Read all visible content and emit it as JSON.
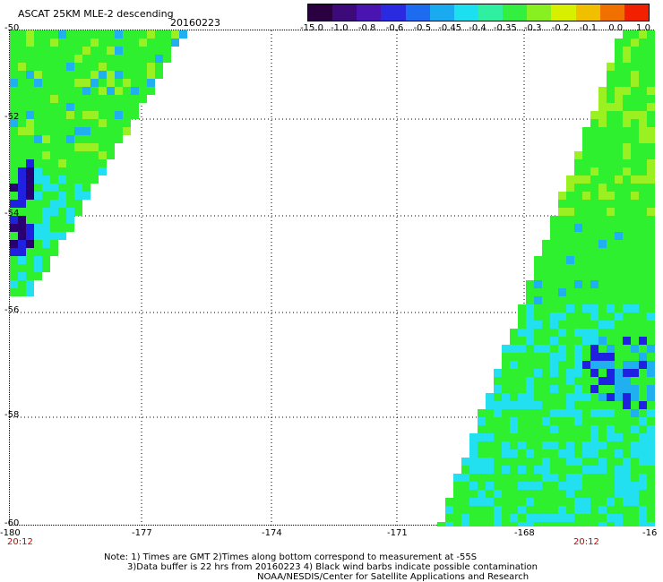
{
  "header": {
    "title": "ASCAT 25KM MLE-2 descending",
    "date": "20160223"
  },
  "colorbar": {
    "labels": [
      "-15.0",
      "-1.0",
      "-0.8",
      "-0.6",
      "-0.5",
      "-0.45",
      "-0.4",
      "-0.35",
      "-0.3",
      "-0.2",
      "-0.1",
      "0.0",
      "1.0"
    ],
    "colors": [
      "#2a0040",
      "#3d0a7a",
      "#4a14b0",
      "#2a2ae0",
      "#1d6cf0",
      "#1aaaf0",
      "#1ce0f0",
      "#2ff0a0",
      "#33f040",
      "#88f020",
      "#d8f000",
      "#f0c000",
      "#f07000",
      "#f02000"
    ]
  },
  "map": {
    "lat_labels": [
      "-50",
      "-52",
      "-54",
      "-56",
      "-58",
      "-60"
    ],
    "lon_labels": [
      "-180",
      "-177",
      "-174",
      "-171",
      "-168",
      "-16"
    ],
    "time_left": "20:12",
    "time_right": "20:12",
    "colors": {
      "green": "#2ff02f",
      "lime": "#9af020",
      "cyan": "#22e0f0",
      "sky": "#20b0f0",
      "blue": "#2020e0",
      "purple": "#2a0070"
    }
  },
  "notes": {
    "line1": "Note: 1) Times are GMT 2)Times along bottom correspond to measurement at -55S",
    "line2": "3)Data buffer is 22 hrs from 20160223 4) Black wind barbs indicate possible contamination",
    "line3": "NOAA/NESDIS/Center for Satellite Applications and Research"
  }
}
